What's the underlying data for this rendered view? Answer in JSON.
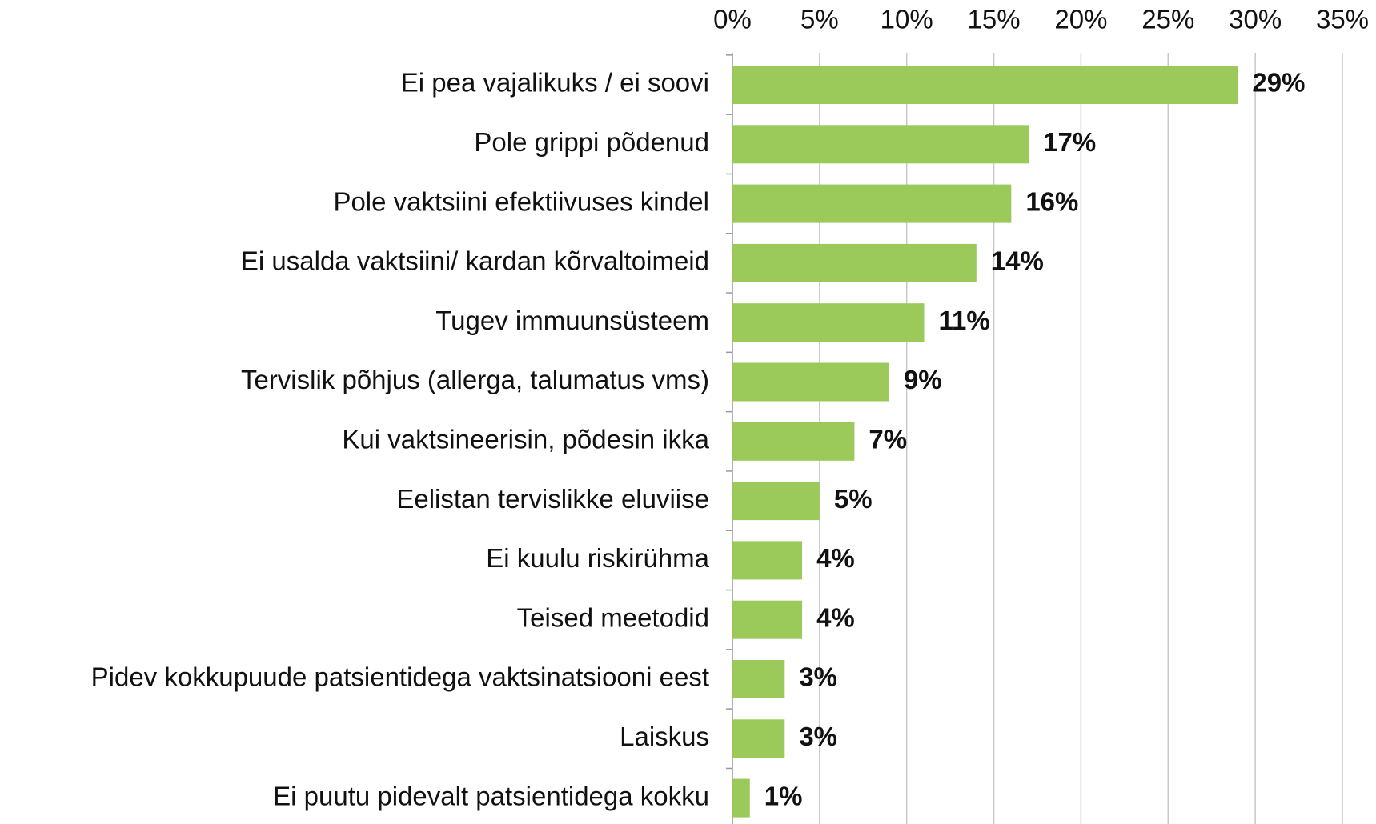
{
  "chart_data": {
    "type": "bar",
    "orientation": "horizontal",
    "categories": [
      "Ei pea vajalikuks / ei soovi",
      "Pole grippi põdenud",
      "Pole vaktsiini efektiivuses kindel",
      "Ei usalda vaktsiini/ kardan kõrvaltoimeid",
      "Tugev immuunsüsteem",
      "Tervislik põhjus (allerga, talumatus vms)",
      "Kui vaktsineerisin, põdesin ikka",
      "Eelistan tervislikke eluviise",
      "Ei kuulu riskirühma",
      "Teised meetodid",
      "Pidev kokkupuude patsientidega vaktsinatsiooni eest",
      "Laiskus",
      "Ei puutu pidevalt patsientidega kokku"
    ],
    "values": [
      29,
      17,
      16,
      14,
      11,
      9,
      7,
      5,
      4,
      4,
      3,
      3,
      1
    ],
    "value_labels": [
      "29%",
      "17%",
      "16%",
      "14%",
      "11%",
      "9%",
      "7%",
      "5%",
      "4%",
      "4%",
      "3%",
      "3%",
      "1%"
    ],
    "color": "#9bc95a",
    "xlim": [
      0,
      35
    ],
    "xticks": [
      {
        "value": 0,
        "label": "0%"
      },
      {
        "value": 5,
        "label": "5%"
      },
      {
        "value": 10,
        "label": "10%"
      },
      {
        "value": 15,
        "label": "15%"
      },
      {
        "value": 20,
        "label": "20%"
      },
      {
        "value": 25,
        "label": "25%"
      },
      {
        "value": 30,
        "label": "30%"
      },
      {
        "value": 35,
        "label": "35%"
      }
    ],
    "grid": true
  }
}
